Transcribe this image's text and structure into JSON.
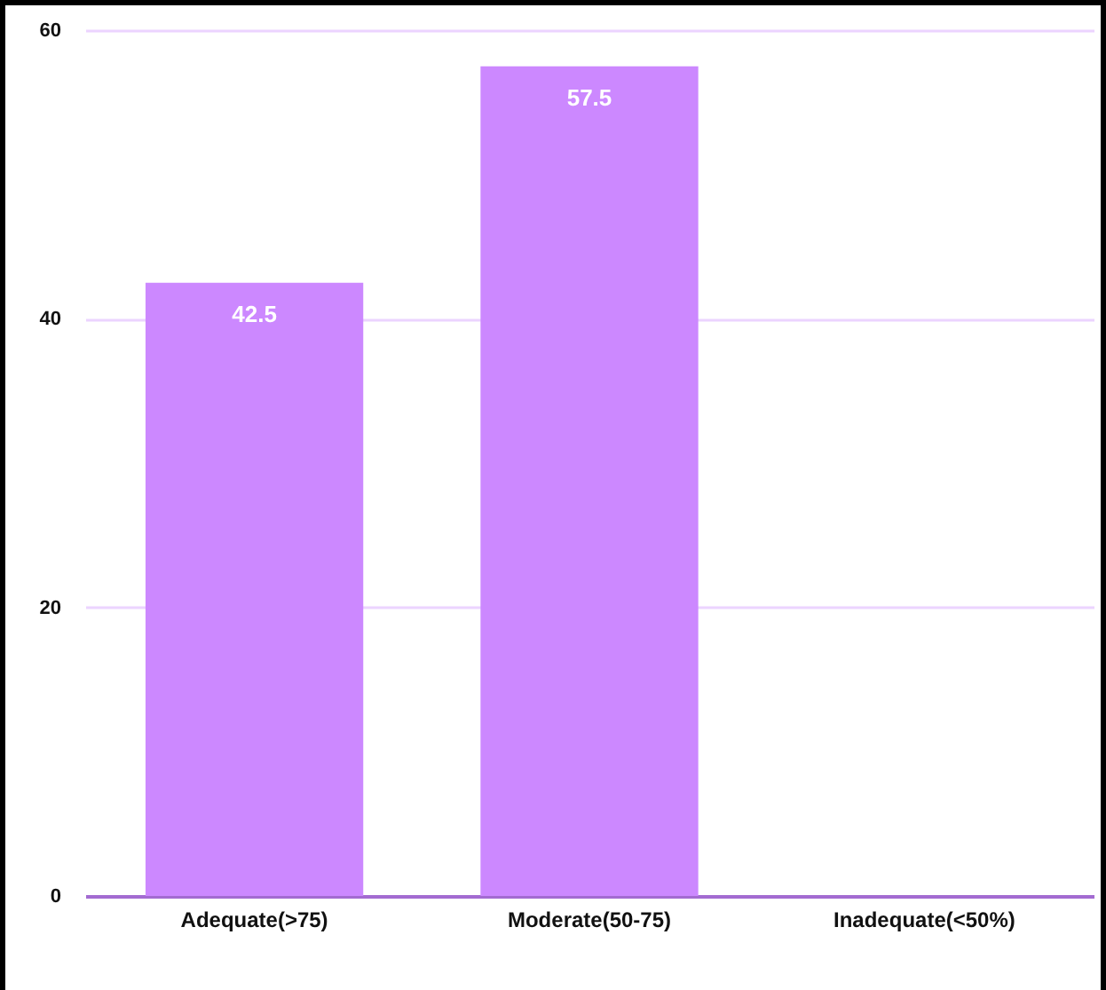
{
  "chart_data": {
    "type": "bar",
    "categories": [
      "Adequate(>75)",
      "Moderate(50-75)",
      "Inadequate(<50%)"
    ],
    "values": [
      42.5,
      57.5,
      0
    ],
    "value_labels": [
      "42.5",
      "57.5",
      null
    ],
    "color": "#cc88ff",
    "ylim": [
      0,
      60
    ],
    "yticks": [
      0,
      20,
      40,
      60
    ],
    "grid": "y"
  }
}
